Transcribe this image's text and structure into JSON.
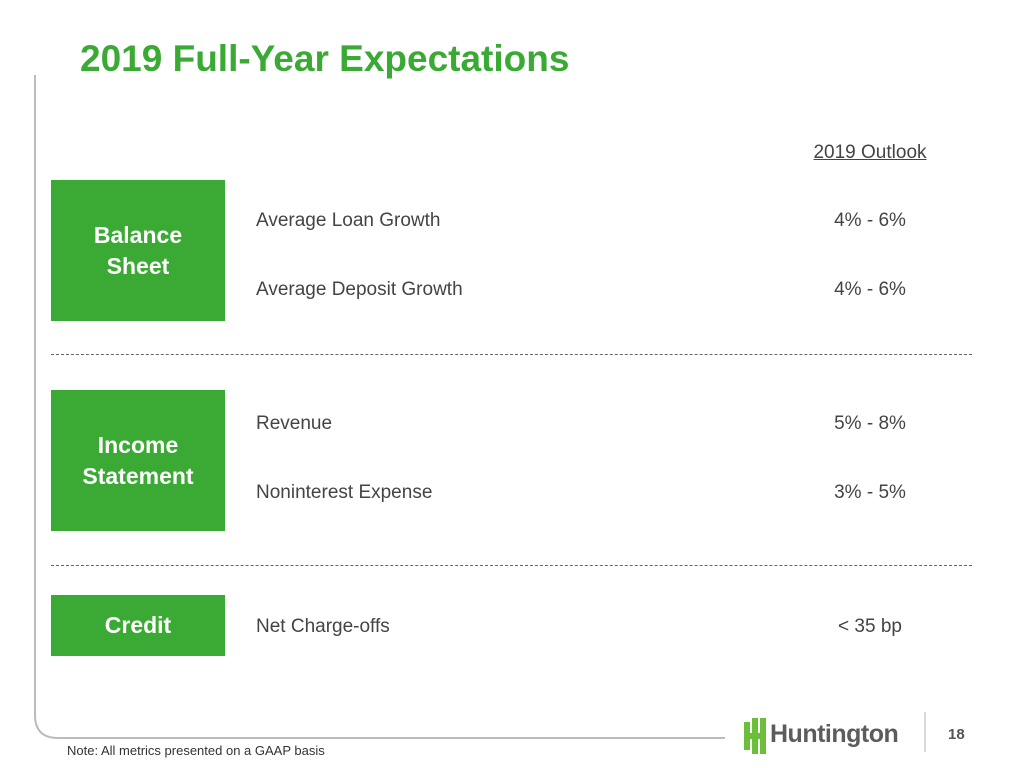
{
  "header": {
    "title": "2019 Full-Year Expectations",
    "outlook_heading": "2019 Outlook"
  },
  "sections": [
    {
      "label": "Balance Sheet",
      "items": [
        {
          "metric": "Average Loan Growth",
          "outlook": "4% - 6%"
        },
        {
          "metric": "Average Deposit Growth",
          "outlook": "4% - 6%"
        }
      ]
    },
    {
      "label": "Income Statement",
      "items": [
        {
          "metric": "Revenue",
          "outlook": "5% - 8%"
        },
        {
          "metric": "Noninterest Expense",
          "outlook": "3% - 5%"
        }
      ]
    },
    {
      "label": "Credit",
      "items": [
        {
          "metric": "Net Charge-offs",
          "outlook": "< 35 bp"
        }
      ]
    }
  ],
  "footer": {
    "note": "Note: All metrics presented on a GAAP basis",
    "logo": "Huntington",
    "page_number": "18"
  }
}
